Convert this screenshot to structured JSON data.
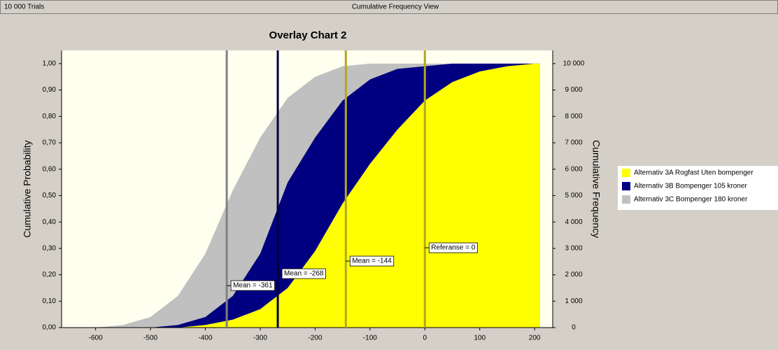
{
  "window": {
    "trials": "10 000 Trials",
    "view": "Cumulative Frequency View"
  },
  "chart_data": {
    "type": "area",
    "title": "Overlay Chart 2",
    "y_label": "Cumulative Probability",
    "y2_label": "Cumulative Frequency",
    "x": [
      -650,
      -600,
      -550,
      -500,
      -450,
      -400,
      -350,
      -300,
      -250,
      -200,
      -150,
      -100,
      -50,
      0,
      50,
      100,
      150,
      200,
      210
    ],
    "series": [
      {
        "name": "Alternativ 3C Bompenger 180 kroner",
        "color": "#c0c0c0",
        "values": [
          0,
          0,
          0.01,
          0.04,
          0.12,
          0.28,
          0.52,
          0.72,
          0.87,
          0.95,
          0.99,
          1,
          1,
          1,
          1,
          1,
          1,
          1,
          1
        ]
      },
      {
        "name": "Alternativ 3B Bompenger 105 kroner",
        "color": "#000080",
        "values": [
          0,
          0,
          0,
          0,
          0.01,
          0.04,
          0.12,
          0.28,
          0.55,
          0.72,
          0.86,
          0.94,
          0.98,
          0.99,
          1,
          1,
          1,
          1,
          1
        ]
      },
      {
        "name": "Alternativ 3A Rogfast Uten bompenger",
        "color": "#ffff00",
        "values": [
          0,
          0,
          0,
          0,
          0,
          0.01,
          0.03,
          0.07,
          0.15,
          0.29,
          0.47,
          0.62,
          0.75,
          0.86,
          0.93,
          0.97,
          0.99,
          1,
          1
        ]
      }
    ],
    "legend_order": [
      2,
      1,
      0
    ],
    "markers": [
      {
        "label": "Mean = -361",
        "value": -361,
        "color": "#808080"
      },
      {
        "label": "Mean = -268",
        "value": -268,
        "color": "#000040"
      },
      {
        "label": "Mean = -144",
        "value": -144,
        "color": "#b0a820"
      },
      {
        "label": "Referanse = 0",
        "value": 0,
        "color": "#b0a820"
      }
    ],
    "xlim": [
      -662,
      233
    ],
    "xticks": [
      -600,
      -500,
      -400,
      -300,
      -200,
      -100,
      0,
      100,
      200
    ],
    "ylim": [
      0,
      1.05
    ],
    "yticks": [
      {
        "value": 0,
        "label": "0,00"
      },
      {
        "value": 0.1,
        "label": "0,10"
      },
      {
        "value": 0.2,
        "label": "0,20"
      },
      {
        "value": 0.3,
        "label": "0,30"
      },
      {
        "value": 0.4,
        "label": "0,40"
      },
      {
        "value": 0.5,
        "label": "0,50"
      },
      {
        "value": 0.6,
        "label": "0,60"
      },
      {
        "value": 0.7,
        "label": "0,70"
      },
      {
        "value": 0.8,
        "label": "0,80"
      },
      {
        "value": 0.9,
        "label": "0,90"
      },
      {
        "value": 1,
        "label": "1,00"
      }
    ],
    "y2lim": [
      0,
      10500
    ],
    "y2ticks": [
      0,
      {
        "value": 1000,
        "label": "1 000"
      },
      {
        "value": 2000,
        "label": "2 000"
      },
      {
        "value": 3000,
        "label": "3 000"
      },
      {
        "value": 4000,
        "label": "4 000"
      },
      {
        "value": 5000,
        "label": "5 000"
      },
      {
        "value": 6000,
        "label": "6 000"
      },
      {
        "value": 7000,
        "label": "7 000"
      },
      {
        "value": 8000,
        "label": "8 000"
      },
      {
        "value": 9000,
        "label": "9 000"
      },
      {
        "value": 10000,
        "label": "10 000"
      }
    ],
    "grid": false
  }
}
